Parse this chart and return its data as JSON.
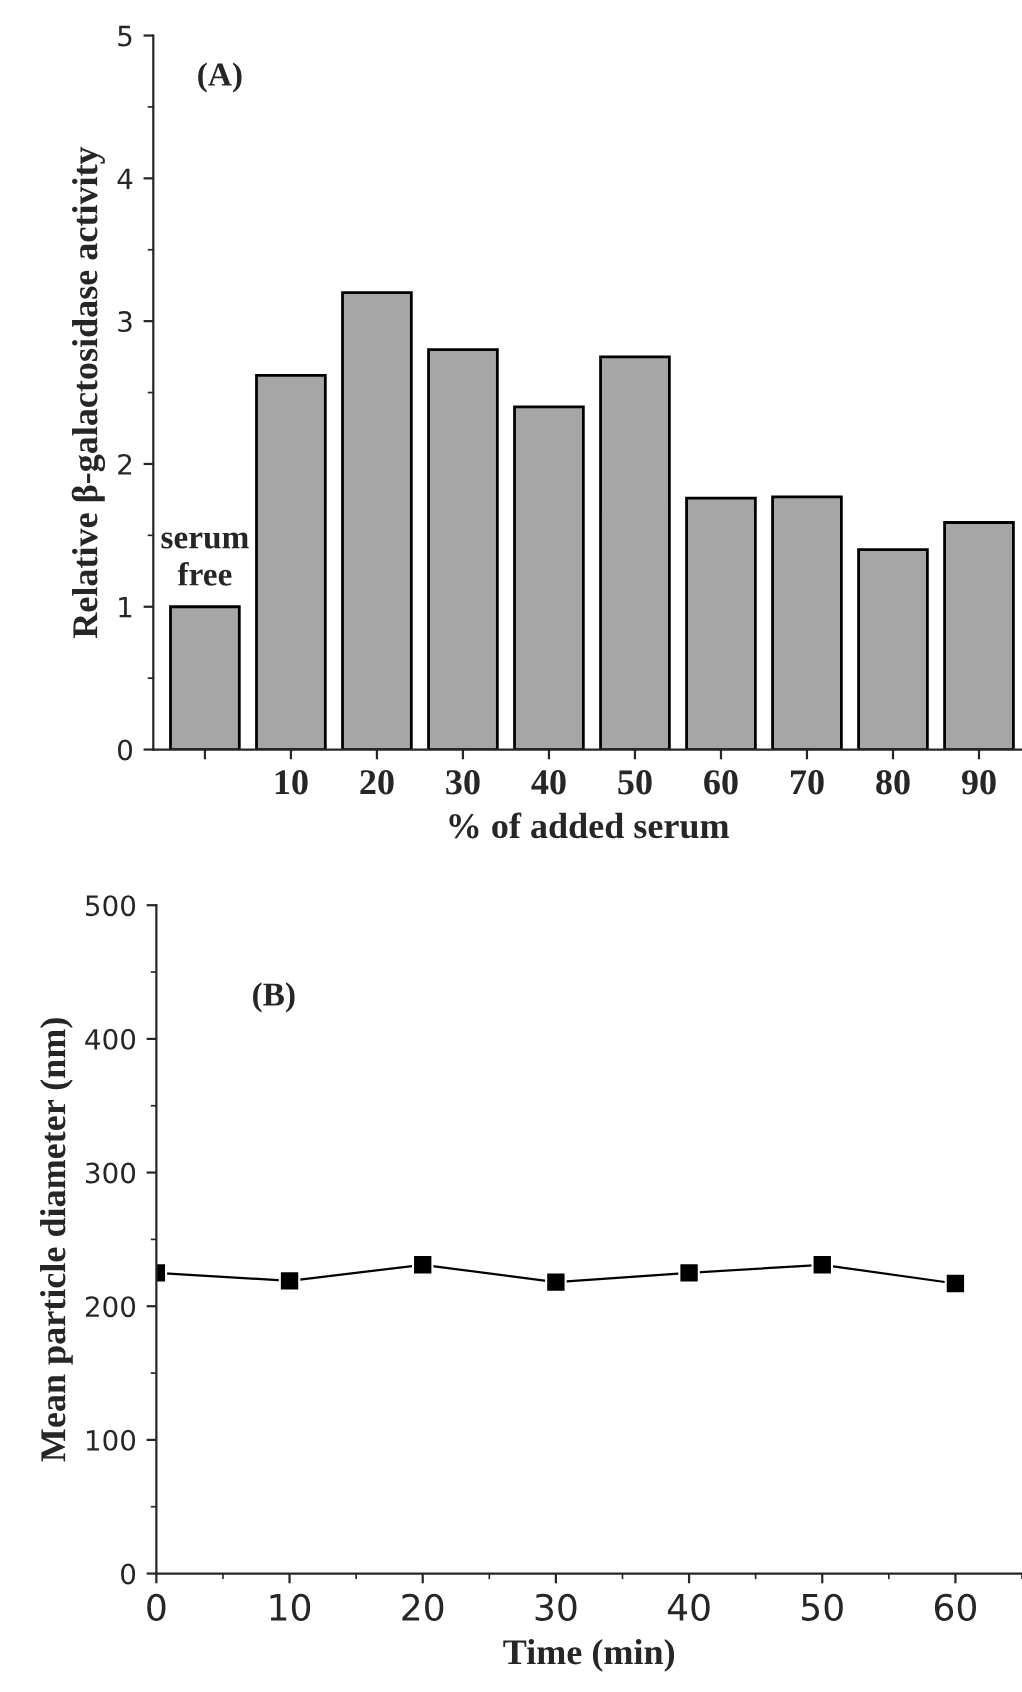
{
  "chart_data": [
    {
      "type": "bar",
      "annotations": [
        "(A)",
        "serum\nfree"
      ],
      "xlabel": "% of added serum",
      "ylabel": "Relative β-galactosidase activity",
      "categories": [
        null,
        "10",
        "20",
        "30",
        "40",
        "50",
        "60",
        "70",
        "80",
        "90"
      ],
      "values": [
        1.0,
        2.62,
        3.2,
        2.8,
        2.4,
        2.75,
        1.76,
        1.77,
        1.4,
        1.59
      ],
      "color": "#a6a6a6",
      "ylim": [
        0,
        5
      ],
      "yticks": [
        0,
        1,
        2,
        3,
        4,
        5
      ],
      "grid": false
    },
    {
      "type": "line",
      "annotations": [
        "(B)"
      ],
      "xlabel": "Time (min)",
      "ylabel": "Mean particle diameter (nm)",
      "x": [
        0,
        10,
        20,
        30,
        40,
        50,
        60
      ],
      "values": [
        225,
        219,
        231,
        218,
        225,
        231,
        217
      ],
      "color": "#000000",
      "marker": "square",
      "line_style": "solid",
      "xlim": [
        0,
        65
      ],
      "xticks": [
        0,
        10,
        20,
        30,
        40,
        50,
        60
      ],
      "ylim": [
        0,
        500
      ],
      "yticks": [
        0,
        100,
        200,
        300,
        400,
        500
      ],
      "grid": false
    }
  ]
}
